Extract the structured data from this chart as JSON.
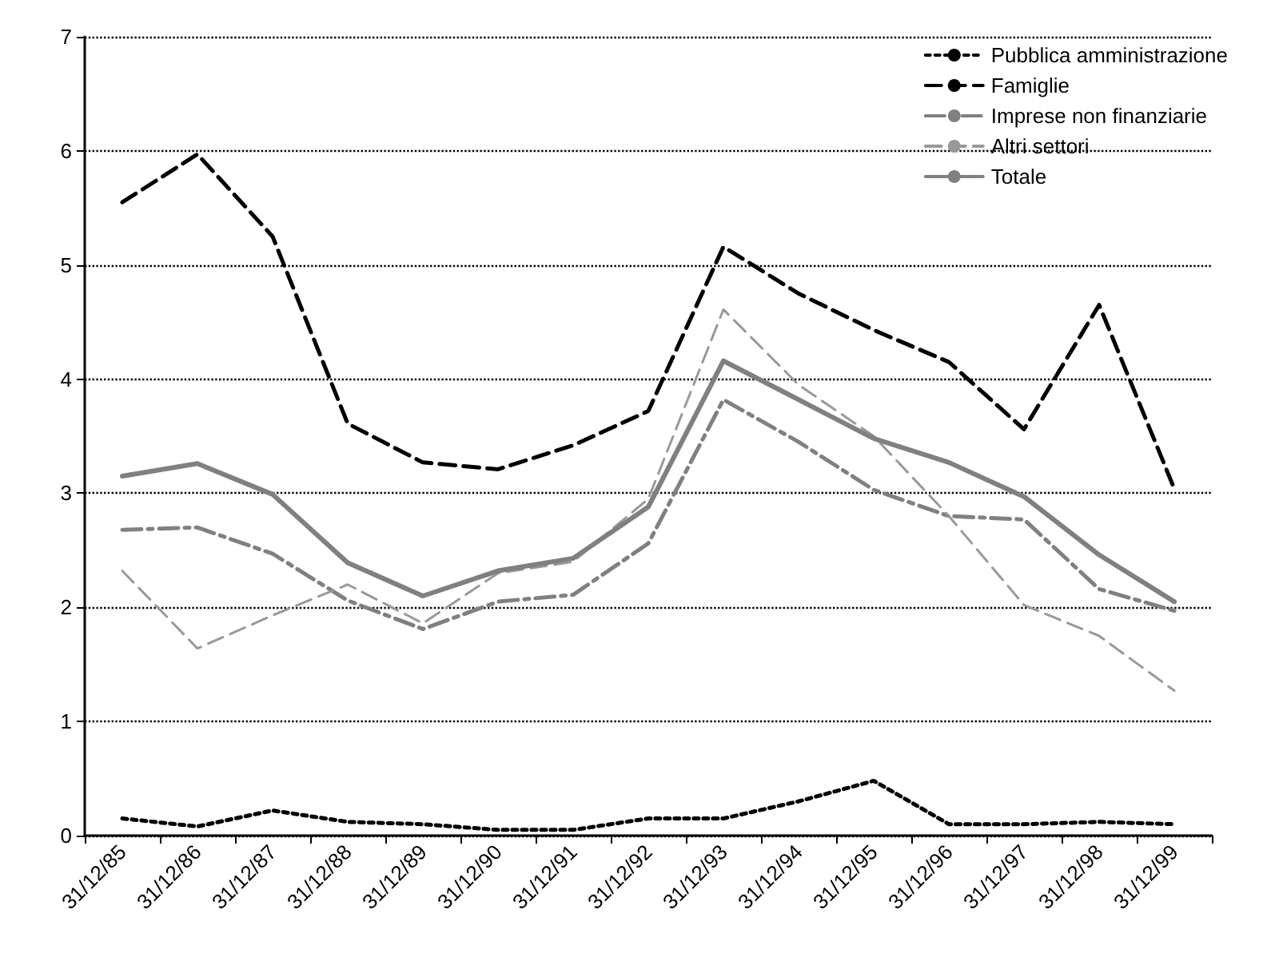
{
  "chart_data": {
    "type": "line",
    "categories": [
      "31/12/85",
      "31/12/86",
      "31/12/87",
      "31/12/88",
      "31/12/89",
      "31/12/90",
      "31/12/91",
      "31/12/92",
      "31/12/93",
      "31/12/94",
      "31/12/95",
      "31/12/96",
      "31/12/97",
      "31/12/98",
      "31/12/99"
    ],
    "series": [
      {
        "name": "Pubblica amministrazione",
        "color": "#000000",
        "line_style": "dotted",
        "values": [
          0.15,
          0.08,
          0.22,
          0.12,
          0.1,
          0.05,
          0.05,
          0.15,
          0.15,
          0.3,
          0.48,
          0.1,
          0.1,
          0.12,
          0.1
        ]
      },
      {
        "name": "Famiglie",
        "color": "#000000",
        "line_style": "dashed",
        "values": [
          5.55,
          5.97,
          5.25,
          3.61,
          3.27,
          3.21,
          3.42,
          3.72,
          5.16,
          4.75,
          4.43,
          4.15,
          3.56,
          4.65,
          3.04
        ]
      },
      {
        "name": "Imprese non finanziarie",
        "color": "#808080",
        "line_style": "dashdot",
        "values": [
          2.68,
          2.7,
          2.47,
          2.06,
          1.81,
          2.05,
          2.11,
          2.56,
          3.82,
          3.45,
          3.03,
          2.8,
          2.77,
          2.16,
          1.97
        ]
      },
      {
        "name": "Altri settori",
        "color": "#999999",
        "line_style": "dashed",
        "values": [
          2.32,
          1.64,
          1.93,
          2.2,
          1.86,
          2.3,
          2.4,
          2.95,
          4.61,
          3.95,
          3.5,
          2.8,
          2.02,
          1.75,
          1.27
        ]
      },
      {
        "name": "Totale",
        "color": "#808080",
        "line_style": "solid",
        "values": [
          3.15,
          3.26,
          2.99,
          2.39,
          2.1,
          2.32,
          2.43,
          2.88,
          4.16,
          3.82,
          3.48,
          3.27,
          2.97,
          2.46,
          2.05
        ]
      }
    ],
    "ylim": [
      0,
      7
    ],
    "yticks": [
      0,
      1,
      2,
      3,
      4,
      5,
      6,
      7
    ],
    "grid": "y",
    "legend": "top right",
    "marker": "none"
  }
}
